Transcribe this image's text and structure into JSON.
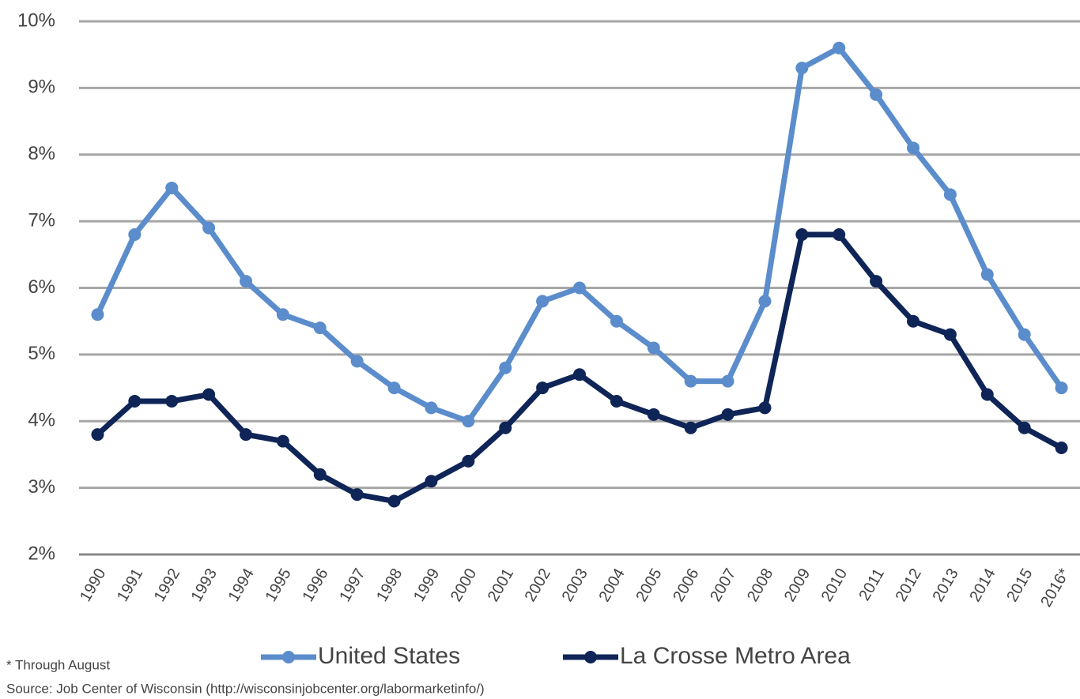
{
  "chart_data": {
    "type": "line",
    "categories": [
      "1990",
      "1991",
      "1992",
      "1993",
      "1994",
      "1995",
      "1996",
      "1997",
      "1998",
      "1999",
      "2000",
      "2001",
      "2002",
      "2003",
      "2004",
      "2005",
      "2006",
      "2007",
      "2008",
      "2009",
      "2010",
      "2011",
      "2012",
      "2013",
      "2014",
      "2015",
      "2016*"
    ],
    "series": [
      {
        "name": "United States",
        "color": "#5b8ccb",
        "values": [
          5.6,
          6.8,
          7.5,
          6.9,
          6.1,
          5.6,
          5.4,
          4.9,
          4.5,
          4.2,
          4.0,
          4.8,
          5.8,
          6.0,
          5.5,
          5.1,
          4.6,
          4.6,
          5.8,
          9.3,
          9.6,
          8.9,
          8.1,
          7.4,
          6.2,
          5.3,
          4.5
        ]
      },
      {
        "name": "La Crosse Metro Area",
        "color": "#0f2557",
        "values": [
          3.8,
          4.3,
          4.3,
          4.4,
          3.8,
          3.7,
          3.2,
          2.9,
          2.8,
          3.1,
          3.4,
          3.9,
          4.5,
          4.7,
          4.3,
          4.1,
          3.9,
          4.1,
          4.2,
          6.8,
          6.8,
          6.1,
          5.5,
          5.3,
          4.4,
          3.9,
          3.6
        ]
      }
    ],
    "ylim": [
      2,
      10
    ],
    "yticks": [
      {
        "value": 2,
        "label": "2%"
      },
      {
        "value": 3,
        "label": "3%"
      },
      {
        "value": 4,
        "label": "4%"
      },
      {
        "value": 5,
        "label": "5%"
      },
      {
        "value": 6,
        "label": "6%"
      },
      {
        "value": 7,
        "label": "7%"
      },
      {
        "value": 8,
        "label": "8%"
      },
      {
        "value": 9,
        "label": "9%"
      },
      {
        "value": 10,
        "label": "10%"
      }
    ],
    "grid": true,
    "legend": "bottom",
    "annotations": [
      "* Through August",
      "Source: Job Center of Wisconsin (http://wisconsinjobcenter.org/labormarketinfo/)"
    ]
  }
}
